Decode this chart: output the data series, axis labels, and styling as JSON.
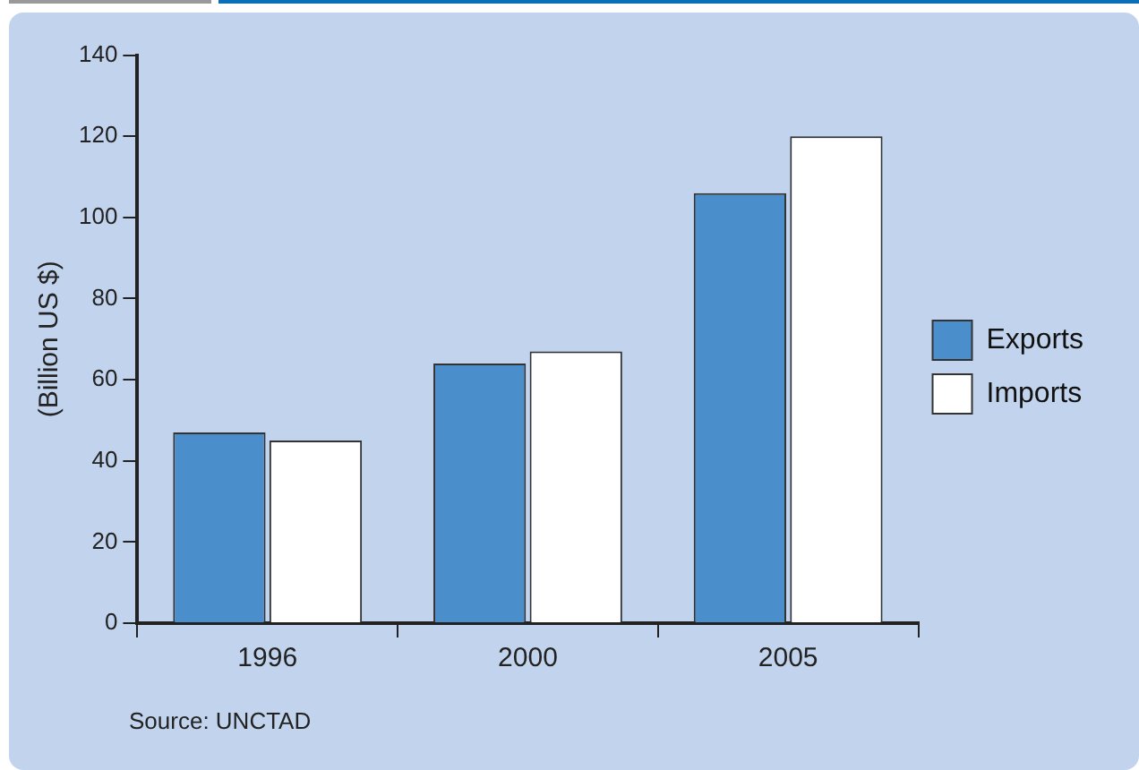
{
  "chart_data": {
    "type": "bar",
    "ylabel": "(Billion US $)",
    "categories": [
      "1996",
      "2000",
      "2005"
    ],
    "series": [
      {
        "name": "Exports",
        "color": "#4a8ecc",
        "values": [
          47,
          64,
          106
        ]
      },
      {
        "name": "Imports",
        "color": "#ffffff",
        "values": [
          45,
          67,
          120
        ]
      }
    ],
    "ylim": [
      0,
      140
    ],
    "yticks": [
      0,
      20,
      40,
      60,
      80,
      100,
      120,
      140
    ],
    "grid": false,
    "legend": "right",
    "annotations": [
      "Source:  UNCTAD"
    ]
  }
}
